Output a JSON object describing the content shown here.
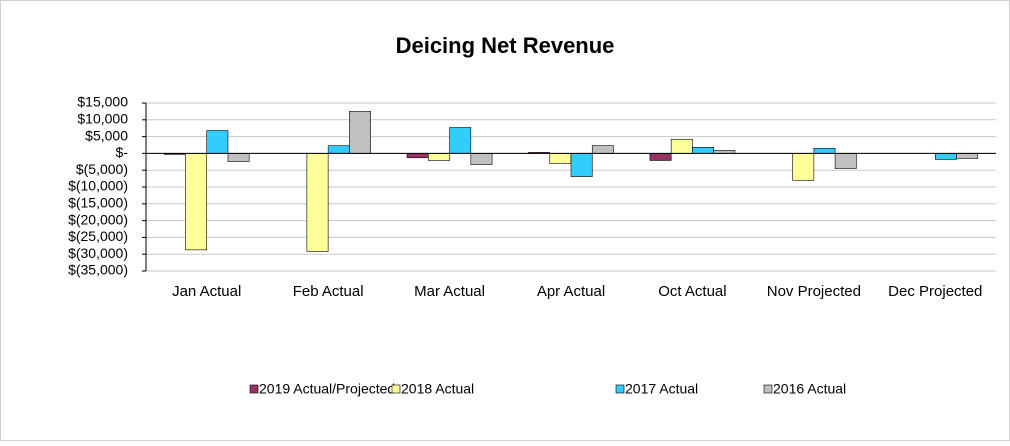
{
  "chart_data": {
    "type": "bar",
    "title": "Deicing Net Revenue",
    "categories": [
      "Jan Actual",
      "Feb Actual",
      "Mar Actual",
      "Apr Actual",
      "Oct Actual",
      "Nov Projected",
      "Dec Projected"
    ],
    "series": [
      {
        "name": "2019 Actual/Projected",
        "color": "#993366",
        "values": [
          -300,
          0,
          -1300,
          300,
          -2100,
          0,
          0
        ]
      },
      {
        "name": "2018 Actual",
        "color": "#ffff99",
        "values": [
          -28700,
          -29200,
          -2100,
          -3000,
          4200,
          -8000,
          0
        ]
      },
      {
        "name": "2017 Actual",
        "color": "#33ccff",
        "values": [
          6800,
          2300,
          7700,
          -6900,
          1800,
          1500,
          -1800
        ]
      },
      {
        "name": "2016 Actual",
        "color": "#c0c0c0",
        "values": [
          -2400,
          12500,
          -3300,
          2300,
          900,
          -4500,
          -1500
        ]
      }
    ],
    "ylim": [
      -35000,
      15000
    ],
    "yticks": [
      {
        "value": -35000,
        "label": "$(35,000)"
      },
      {
        "value": -30000,
        "label": "$(30,000)"
      },
      {
        "value": -25000,
        "label": "$(25,000)"
      },
      {
        "value": -20000,
        "label": "$(20,000)"
      },
      {
        "value": -15000,
        "label": "$(15,000)"
      },
      {
        "value": -10000,
        "label": "$(10,000)"
      },
      {
        "value": -5000,
        "label": "$(5,000)"
      },
      {
        "value": 0,
        "label": "$-"
      },
      {
        "value": 5000,
        "label": "$5,000"
      },
      {
        "value": 10000,
        "label": "$10,000"
      },
      {
        "value": 15000,
        "label": "$15,000"
      }
    ],
    "grid": true,
    "legend": "bottom"
  }
}
